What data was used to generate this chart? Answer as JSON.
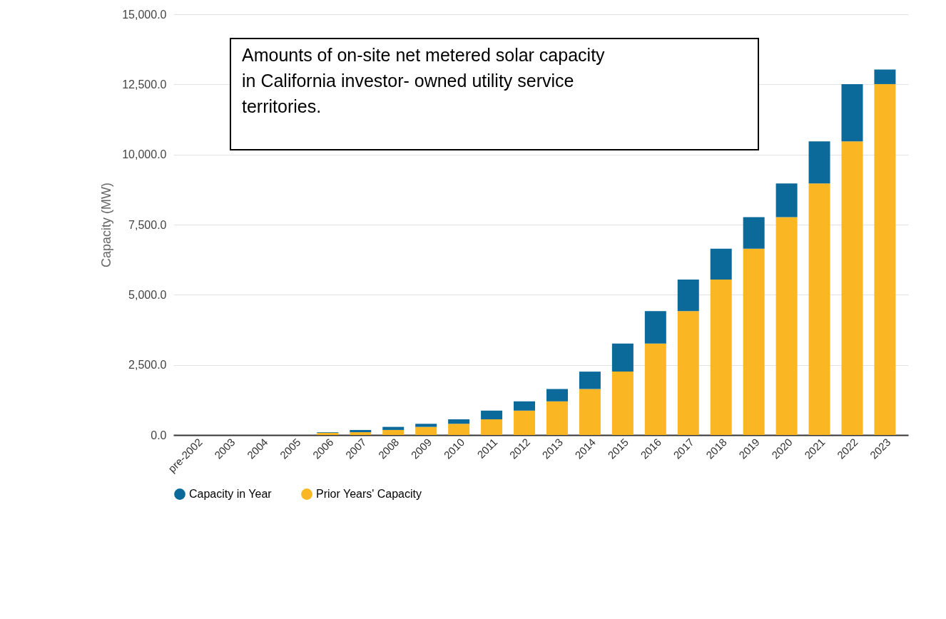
{
  "chart_data": {
    "type": "bar",
    "stacked": true,
    "ylabel": "Capacity (MW)",
    "categories": [
      "pre-2002",
      "2003",
      "2004",
      "2005",
      "2006",
      "2007",
      "2008",
      "2009",
      "2010",
      "2011",
      "2012",
      "2013",
      "2014",
      "2015",
      "2016",
      "2017",
      "2018",
      "2019",
      "2020",
      "2021",
      "2022",
      "2023"
    ],
    "series": [
      {
        "name": "Prior Years' Capacity",
        "color": "#fbb723",
        "values": [
          0,
          0,
          0,
          0,
          80,
          100,
          180,
          290,
          400,
          560,
          870,
          1200,
          1640,
          2260,
          3260,
          4420,
          5540,
          6640,
          7770,
          8970,
          10470,
          12510
        ]
      },
      {
        "name": "Capacity in Year",
        "color": "#0b6a9a",
        "values": [
          0,
          0,
          0,
          0,
          20,
          80,
          110,
          110,
          160,
          310,
          330,
          440,
          620,
          1000,
          1160,
          1120,
          1100,
          1130,
          1200,
          1500,
          2040,
          520
        ]
      }
    ],
    "ylim": [
      0,
      15000
    ],
    "yticks": [
      {
        "value": 0,
        "label": "0.0"
      },
      {
        "value": 2500,
        "label": "2,500.0"
      },
      {
        "value": 5000,
        "label": "5,000.0"
      },
      {
        "value": 7500,
        "label": "7,500.0"
      },
      {
        "value": 10000,
        "label": "10,000.0"
      },
      {
        "value": 12500,
        "label": "12,500.0"
      },
      {
        "value": 15000,
        "label": "15,000.0"
      }
    ],
    "grid": "y",
    "legend": "bottom",
    "annotations": [
      "Amounts of on-site net metered solar capacity in California investor- owned utility service territories."
    ]
  }
}
